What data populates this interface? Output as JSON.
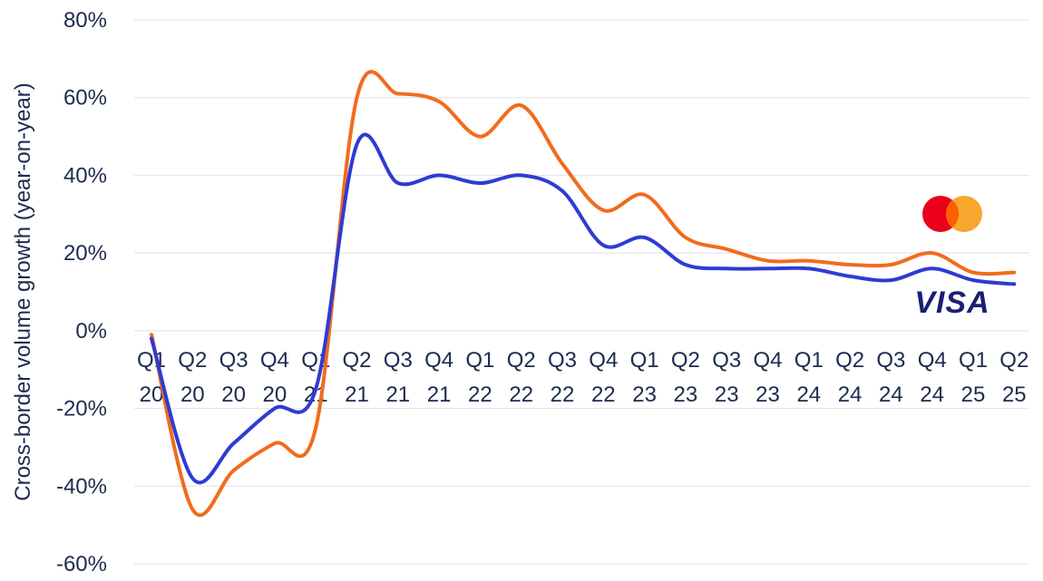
{
  "chart_data": {
    "type": "line",
    "title": "",
    "ylabel": "Cross-border volume growth (year-on-year)",
    "xlabel": "",
    "ylim": [
      -60,
      80
    ],
    "yticks": [
      80,
      60,
      40,
      20,
      0,
      -20,
      -40,
      -60
    ],
    "ytick_labels": [
      "80%",
      "60%",
      "40%",
      "20%",
      "0%",
      "-20%",
      "-40%",
      "-60%"
    ],
    "grid": true,
    "x_top": [
      "Q1",
      "Q2",
      "Q3",
      "Q4",
      "Q1",
      "Q2",
      "Q3",
      "Q4",
      "Q1",
      "Q2",
      "Q3",
      "Q4",
      "Q1",
      "Q2",
      "Q3",
      "Q4",
      "Q1",
      "Q2",
      "Q3",
      "Q4",
      "Q1",
      "Q2"
    ],
    "x_bottom": [
      "20",
      "20",
      "20",
      "20",
      "21",
      "21",
      "21",
      "21",
      "22",
      "22",
      "22",
      "22",
      "23",
      "23",
      "23",
      "23",
      "24",
      "24",
      "24",
      "24",
      "25",
      "25"
    ],
    "series": [
      {
        "name": "Mastercard",
        "color": "#f26b1d",
        "icon": "mastercard-logo",
        "values": [
          -1,
          -46,
          -36,
          -29,
          -25,
          60,
          61,
          59,
          50,
          58,
          43,
          31,
          35,
          24,
          21,
          18,
          18,
          17,
          17,
          20,
          15,
          15
        ]
      },
      {
        "name": "VISA",
        "color": "#2f3bd3",
        "values": [
          -2,
          -38,
          -29,
          -20,
          -15,
          48,
          38,
          40,
          38,
          40,
          36,
          22,
          24,
          17,
          16,
          16,
          16,
          14,
          13,
          16,
          13,
          12
        ]
      }
    ]
  }
}
